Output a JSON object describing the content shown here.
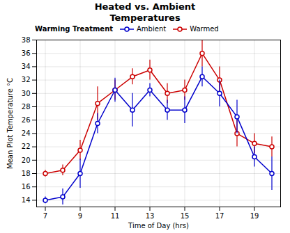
{
  "chart_data": {
    "type": "line",
    "title": "Heated vs. Ambient\nTemperatures",
    "xlabel": "Time of Day (hrs)",
    "ylabel": "Mean Plot Temperature °C",
    "legend_title": "Warming Treatment",
    "x": [
      7,
      8,
      9,
      10,
      11,
      12,
      13,
      14,
      15,
      16,
      17,
      18,
      19,
      20
    ],
    "series": [
      {
        "name": "Ambient",
        "color": "#0000cc",
        "marker": "circle",
        "values": [
          14.0,
          14.5,
          18.0,
          25.5,
          30.5,
          27.5,
          30.5,
          27.5,
          27.5,
          32.5,
          30.0,
          26.5,
          20.5,
          18.0
        ],
        "errors": [
          0.5,
          1.2,
          2.2,
          1.5,
          1.8,
          2.5,
          1.0,
          1.5,
          2.0,
          1.5,
          2.0,
          2.5,
          1.5,
          2.5
        ]
      },
      {
        "name": "Warmed",
        "color": "#cc0000",
        "marker": "circle",
        "values": [
          18.0,
          18.5,
          21.5,
          28.5,
          30.5,
          32.5,
          33.5,
          30.0,
          30.5,
          36.0,
          32.0,
          24.0,
          22.5,
          22.0
        ],
        "errors": [
          0.5,
          0.8,
          1.5,
          2.5,
          1.5,
          1.2,
          1.5,
          1.5,
          1.5,
          2.0,
          2.0,
          2.0,
          1.5,
          1.5
        ]
      }
    ],
    "xlim": [
      6.5,
      20.5
    ],
    "ylim": [
      13,
      38
    ],
    "xticks": [
      7,
      9,
      11,
      13,
      15,
      17,
      19
    ],
    "yticks": [
      14,
      16,
      18,
      20,
      22,
      24,
      26,
      28,
      30,
      32,
      34,
      36,
      38
    ],
    "grid": true,
    "legend": "upper left"
  }
}
